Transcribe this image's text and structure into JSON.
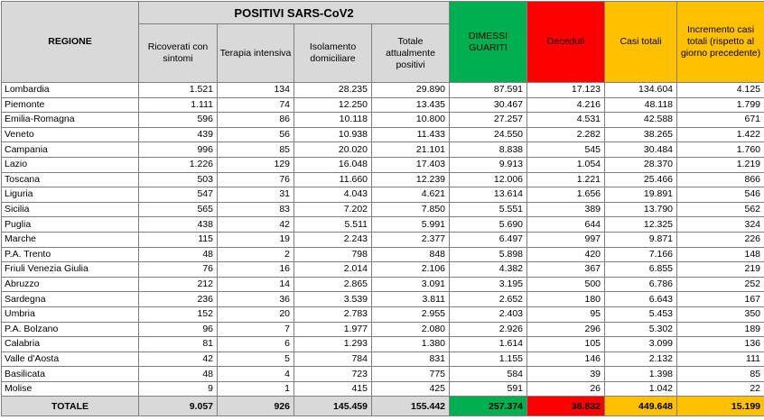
{
  "table": {
    "region_header": "REGIONE",
    "positive_group_header": "POSITIVI SARS-CoV2",
    "columns": {
      "ricoverati": "Ricoverati con sintomi",
      "terapia": "Terapia intensiva",
      "isolamento": "Isolamento domiciliare",
      "totale_positivi": "Totale attualmente positivi",
      "dimessi": "DIMESSI GUARITI",
      "deceduti": "Deceduti",
      "casi_totali": "Casi totali",
      "incremento": "Incremento casi totali (rispetto al giorno precedente)"
    },
    "colors": {
      "header_gray": "#d9d9d9",
      "green": "#00b050",
      "red": "#ff0000",
      "yellow": "#ffc000"
    },
    "rows": [
      [
        "Lombardia",
        "1.521",
        "134",
        "28.235",
        "29.890",
        "87.591",
        "17.123",
        "134.604",
        "4.125"
      ],
      [
        "Piemonte",
        "1.111",
        "74",
        "12.250",
        "13.435",
        "30.467",
        "4.216",
        "48.118",
        "1.799"
      ],
      [
        "Emilia-Romagna",
        "596",
        "86",
        "10.118",
        "10.800",
        "27.257",
        "4.531",
        "42.588",
        "671"
      ],
      [
        "Veneto",
        "439",
        "56",
        "10.938",
        "11.433",
        "24.550",
        "2.282",
        "38.265",
        "1.422"
      ],
      [
        "Campania",
        "996",
        "85",
        "20.020",
        "21.101",
        "8.838",
        "545",
        "30.484",
        "1.760"
      ],
      [
        "Lazio",
        "1.226",
        "129",
        "16.048",
        "17.403",
        "9.913",
        "1.054",
        "28.370",
        "1.219"
      ],
      [
        "Toscana",
        "503",
        "76",
        "11.660",
        "12.239",
        "12.006",
        "1.221",
        "25.466",
        "866"
      ],
      [
        "Liguria",
        "547",
        "31",
        "4.043",
        "4.621",
        "13.614",
        "1.656",
        "19.891",
        "546"
      ],
      [
        "Sicilia",
        "565",
        "83",
        "7.202",
        "7.850",
        "5.551",
        "389",
        "13.790",
        "562"
      ],
      [
        "Puglia",
        "438",
        "42",
        "5.511",
        "5.991",
        "5.690",
        "644",
        "12.325",
        "324"
      ],
      [
        "Marche",
        "115",
        "19",
        "2.243",
        "2.377",
        "6.497",
        "997",
        "9.871",
        "226"
      ],
      [
        "P.A. Trento",
        "48",
        "2",
        "798",
        "848",
        "5.898",
        "420",
        "7.166",
        "148"
      ],
      [
        "Friuli Venezia Giulia",
        "76",
        "16",
        "2.014",
        "2.106",
        "4.382",
        "367",
        "6.855",
        "219"
      ],
      [
        "Abruzzo",
        "212",
        "14",
        "2.865",
        "3.091",
        "3.195",
        "500",
        "6.786",
        "252"
      ],
      [
        "Sardegna",
        "236",
        "36",
        "3.539",
        "3.811",
        "2.652",
        "180",
        "6.643",
        "167"
      ],
      [
        "Umbria",
        "152",
        "20",
        "2.783",
        "2.955",
        "2.403",
        "95",
        "5.453",
        "350"
      ],
      [
        "P.A. Bolzano",
        "96",
        "7",
        "1.977",
        "2.080",
        "2.926",
        "296",
        "5.302",
        "189"
      ],
      [
        "Calabria",
        "81",
        "6",
        "1.293",
        "1.380",
        "1.614",
        "105",
        "3.099",
        "136"
      ],
      [
        "Valle d'Aosta",
        "42",
        "5",
        "784",
        "831",
        "1.155",
        "146",
        "2.132",
        "111"
      ],
      [
        "Basilicata",
        "48",
        "4",
        "723",
        "775",
        "584",
        "39",
        "1.398",
        "85"
      ],
      [
        "Molise",
        "9",
        "1",
        "415",
        "425",
        "591",
        "26",
        "1.042",
        "22"
      ]
    ],
    "total_row": [
      "TOTALE",
      "9.057",
      "926",
      "145.459",
      "155.442",
      "257.374",
      "36.832",
      "449.648",
      "15.199"
    ]
  }
}
